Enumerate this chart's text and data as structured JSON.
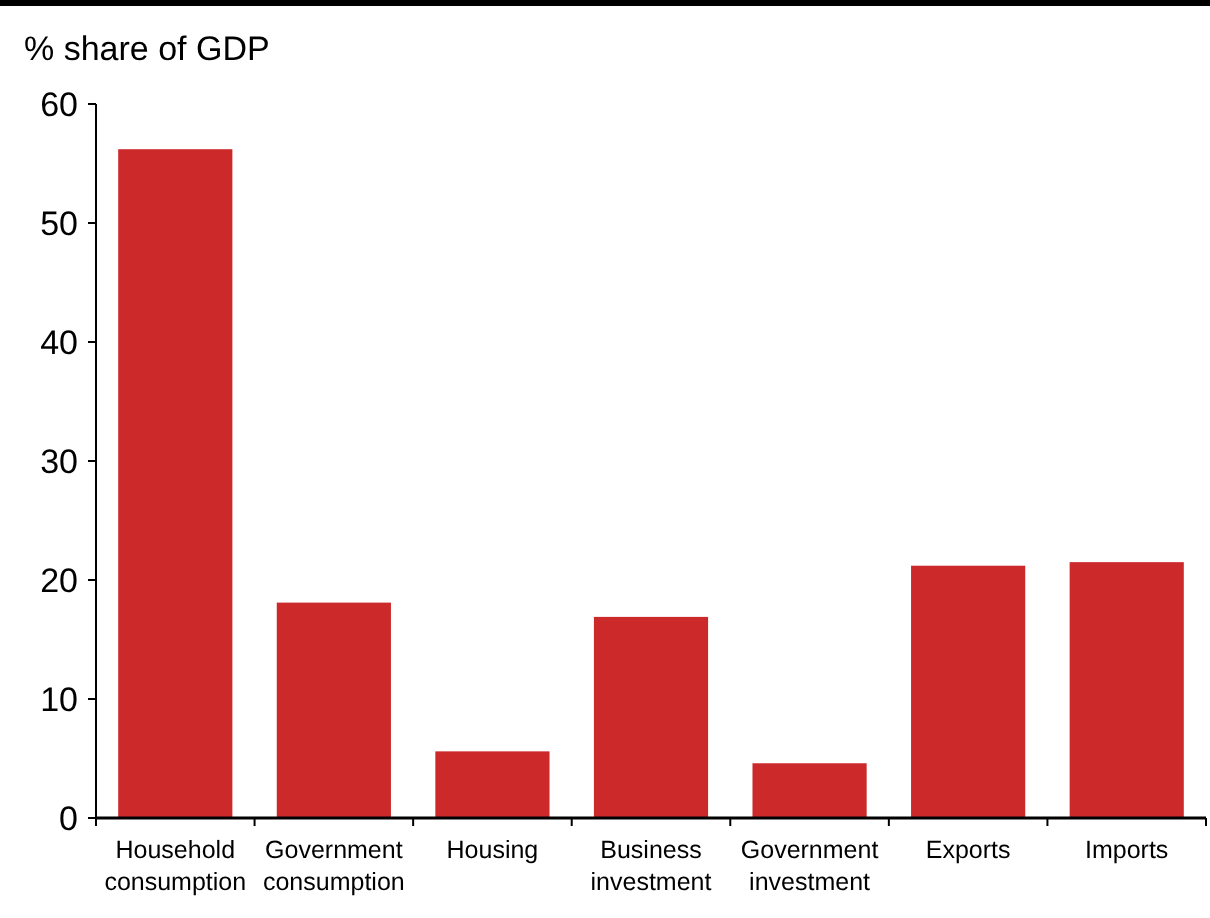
{
  "chart_data": {
    "type": "bar",
    "ylabel": "% share of GDP",
    "categories": [
      "Household consumption",
      "Government consumption",
      "Housing",
      "Business investment",
      "Government investment",
      "Exports",
      "Imports"
    ],
    "values": [
      56.2,
      18.1,
      5.6,
      16.9,
      4.6,
      21.2,
      21.5
    ],
    "color": "#cc292b",
    "ylim": [
      0,
      60
    ],
    "yticks": [
      0,
      10,
      20,
      30,
      40,
      50,
      60
    ],
    "grid": false
  }
}
